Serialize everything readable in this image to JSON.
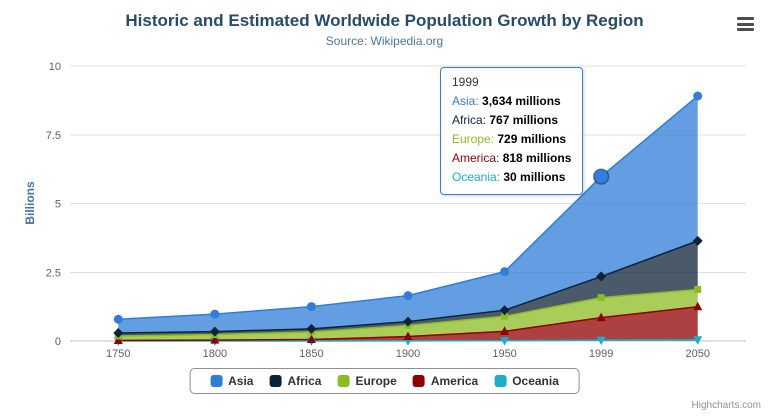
{
  "chart": {
    "title": "Historic and Estimated Worldwide Population Growth by Region",
    "subtitle": "Source: Wikipedia.org",
    "credits": "Highcharts.com"
  },
  "chart_data": {
    "type": "area",
    "stacked": true,
    "title": "Historic and Estimated Worldwide Population Growth by Region",
    "subtitle": "Source: Wikipedia.org",
    "xlabel": "",
    "ylabel": "Billions",
    "ylim": [
      0,
      10
    ],
    "yticks": [
      0,
      2.5,
      5,
      7.5,
      10
    ],
    "categories": [
      "1750",
      "1800",
      "1850",
      "1900",
      "1950",
      "1999",
      "2050"
    ],
    "unit": "millions",
    "grid": true,
    "legend_position": "bottom",
    "series": [
      {
        "name": "Asia",
        "color": "#2f7ed8",
        "marker": "circle",
        "values": [
          502,
          635,
          809,
          947,
          1402,
          3634,
          5268
        ]
      },
      {
        "name": "Africa",
        "color": "#0d233a",
        "marker": "diamond",
        "values": [
          106,
          107,
          111,
          133,
          221,
          767,
          1766
        ]
      },
      {
        "name": "Europe",
        "color": "#8bbc21",
        "marker": "square",
        "values": [
          163,
          203,
          276,
          408,
          547,
          729,
          628
        ]
      },
      {
        "name": "America",
        "color": "#910000",
        "marker": "triangle",
        "values": [
          18,
          31,
          54,
          156,
          339,
          818,
          1201
        ]
      },
      {
        "name": "Oceania",
        "color": "#1aadce",
        "marker": "triangle-down",
        "values": [
          2,
          2,
          2,
          6,
          13,
          30,
          46
        ]
      }
    ]
  },
  "tooltip": {
    "header": "1999",
    "rows": [
      {
        "name": "Asia",
        "value": "3,634",
        "unit": "millions",
        "color": "#2f7ed8"
      },
      {
        "name": "Africa",
        "value": "767",
        "unit": "millions",
        "color": "#0d233a"
      },
      {
        "name": "Europe",
        "value": "729",
        "unit": "millions",
        "color": "#8bbc21"
      },
      {
        "name": "America",
        "value": "818",
        "unit": "millions",
        "color": "#910000"
      },
      {
        "name": "Oceania",
        "value": "30",
        "unit": "millions",
        "color": "#1aadce"
      }
    ],
    "hover_point": {
      "category": "1999",
      "series": "Asia"
    }
  }
}
